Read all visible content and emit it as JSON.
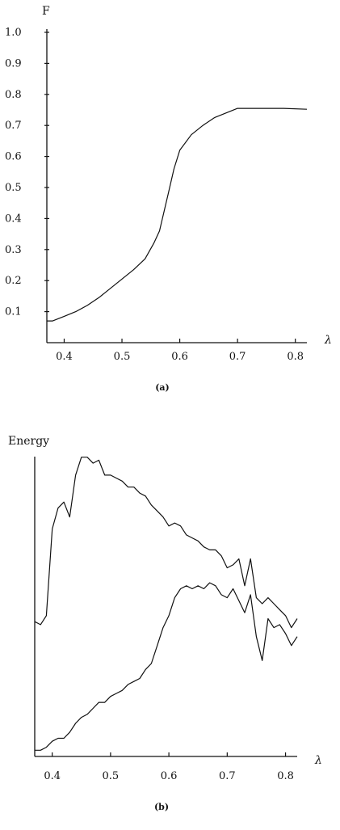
{
  "chart_data": [
    {
      "type": "line",
      "ylabel": "F",
      "xlabel": "λ",
      "caption": "(a)",
      "xlim": [
        0.37,
        0.82
      ],
      "ylim": [
        0.0,
        1.0
      ],
      "x_ticks": [
        "0.4",
        "0.5",
        "0.6",
        "0.7",
        "0.8"
      ],
      "y_ticks": [
        "0.1",
        "0.2",
        "0.3",
        "0.4",
        "0.5",
        "0.6",
        "0.7",
        "0.8",
        "0.9",
        "1.0"
      ],
      "series": [
        {
          "x": [
            0.37,
            0.38,
            0.4,
            0.42,
            0.44,
            0.46,
            0.48,
            0.5,
            0.52,
            0.54,
            0.555,
            0.565,
            0.57,
            0.58,
            0.59,
            0.6,
            0.62,
            0.64,
            0.66,
            0.68,
            0.7,
            0.72,
            0.75,
            0.78,
            0.82
          ],
          "y": [
            0.07,
            0.07,
            0.085,
            0.1,
            0.12,
            0.145,
            0.175,
            0.205,
            0.235,
            0.27,
            0.32,
            0.36,
            0.4,
            0.48,
            0.56,
            0.62,
            0.67,
            0.7,
            0.725,
            0.74,
            0.755,
            0.755,
            0.755,
            0.755,
            0.752
          ]
        }
      ]
    },
    {
      "type": "line",
      "ylabel": "Energy",
      "xlabel": "λ",
      "caption": "(b)",
      "xlim": [
        0.37,
        0.82
      ],
      "ylim": [
        0,
        100
      ],
      "x_ticks": [
        "0.4",
        "0.5",
        "0.6",
        "0.7",
        "0.8"
      ],
      "y_ticks": [],
      "series": [
        {
          "x": [
            0.37,
            0.38,
            0.39,
            0.4,
            0.41,
            0.42,
            0.43,
            0.44,
            0.45,
            0.46,
            0.47,
            0.48,
            0.49,
            0.5,
            0.51,
            0.52,
            0.53,
            0.54,
            0.55,
            0.56,
            0.57,
            0.58,
            0.59,
            0.6,
            0.61,
            0.62,
            0.63,
            0.64,
            0.65,
            0.66,
            0.67,
            0.68,
            0.69,
            0.7,
            0.71,
            0.72,
            0.73,
            0.74,
            0.75,
            0.76,
            0.77,
            0.78,
            0.79,
            0.8,
            0.81,
            0.82
          ],
          "y": [
            44,
            43,
            46,
            75,
            82,
            84,
            79,
            93,
            99,
            99,
            97,
            98,
            93,
            93,
            92,
            91,
            89,
            89,
            87,
            86,
            83,
            81,
            79,
            76,
            77,
            76,
            73,
            72,
            71,
            69,
            68,
            68,
            66,
            62,
            63,
            65,
            56,
            65,
            52,
            50,
            52,
            50,
            48,
            46,
            42,
            45
          ]
        },
        {
          "x": [
            0.37,
            0.38,
            0.39,
            0.4,
            0.41,
            0.42,
            0.43,
            0.44,
            0.45,
            0.46,
            0.47,
            0.48,
            0.49,
            0.5,
            0.51,
            0.52,
            0.53,
            0.54,
            0.55,
            0.56,
            0.57,
            0.58,
            0.59,
            0.6,
            0.61,
            0.62,
            0.63,
            0.64,
            0.65,
            0.66,
            0.67,
            0.68,
            0.69,
            0.7,
            0.71,
            0.72,
            0.73,
            0.74,
            0.75,
            0.76,
            0.77,
            0.78,
            0.79,
            0.8,
            0.81,
            0.82
          ],
          "y": [
            1,
            1,
            2,
            4,
            5,
            5,
            7,
            10,
            12,
            13,
            15,
            17,
            17,
            19,
            20,
            21,
            23,
            24,
            25,
            28,
            30,
            36,
            42,
            46,
            52,
            55,
            56,
            55,
            56,
            55,
            57,
            56,
            53,
            52,
            55,
            51,
            47,
            53,
            39,
            31,
            45,
            42,
            43,
            40,
            36,
            39
          ]
        }
      ]
    }
  ]
}
